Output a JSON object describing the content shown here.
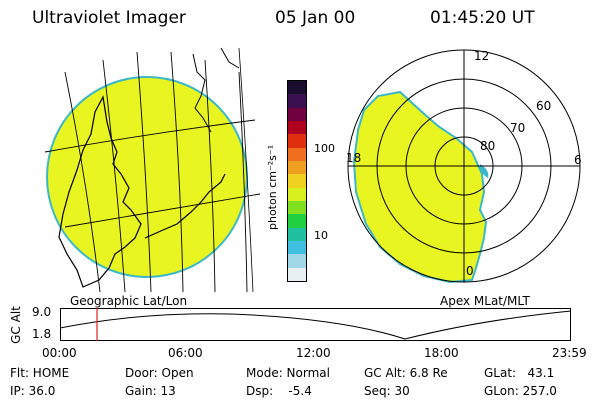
{
  "header": {
    "title": "Ultraviolet Imager",
    "date": "05 Jan 00",
    "time": "01:45:20 UT"
  },
  "colorbar": {
    "unit_label": "photon cm⁻²s⁻¹",
    "ticks": [
      "100",
      "10"
    ],
    "colors_top_to_bottom": [
      "#1a0d2e",
      "#3a1050",
      "#700040",
      "#b00020",
      "#e03010",
      "#f07020",
      "#f0a020",
      "#f0d020",
      "#d8f020",
      "#80e020",
      "#20d040",
      "#20c0a0",
      "#40c0e0",
      "#a0d8e8",
      "#e8f0f4"
    ]
  },
  "left_map": {
    "caption": "Geographic Lat/Lon",
    "fill_color": "#e8f520",
    "edge_color": "#3ab8c8"
  },
  "right_map": {
    "caption": "Apex MLat/MLT",
    "mlt_labels": {
      "top": "12",
      "left": "18",
      "right": "6",
      "bottom": "0"
    },
    "lat_labels": [
      "60",
      "70",
      "80"
    ],
    "fill_color": "#e8f520"
  },
  "timeline": {
    "y_axis_label": "GC Alt",
    "y_ticks": [
      "9.0",
      "1.8"
    ],
    "x_ticks": [
      "00:00",
      "06:00",
      "12:00",
      "18:00",
      "23:59"
    ],
    "cursor_color": "#e02020"
  },
  "status": {
    "flt": "Flt: HOME",
    "ip": "IP: 36.0",
    "door": "Door: Open",
    "gain": "Gain: 13",
    "mode": "Mode: Normal",
    "dsp": "Dsp:    -5.4",
    "gc_alt": "GC Alt: 6.8 Re",
    "seq": "Seq: 30",
    "glat": "GLat:   43.1",
    "glon": "GLon: 257.0"
  }
}
